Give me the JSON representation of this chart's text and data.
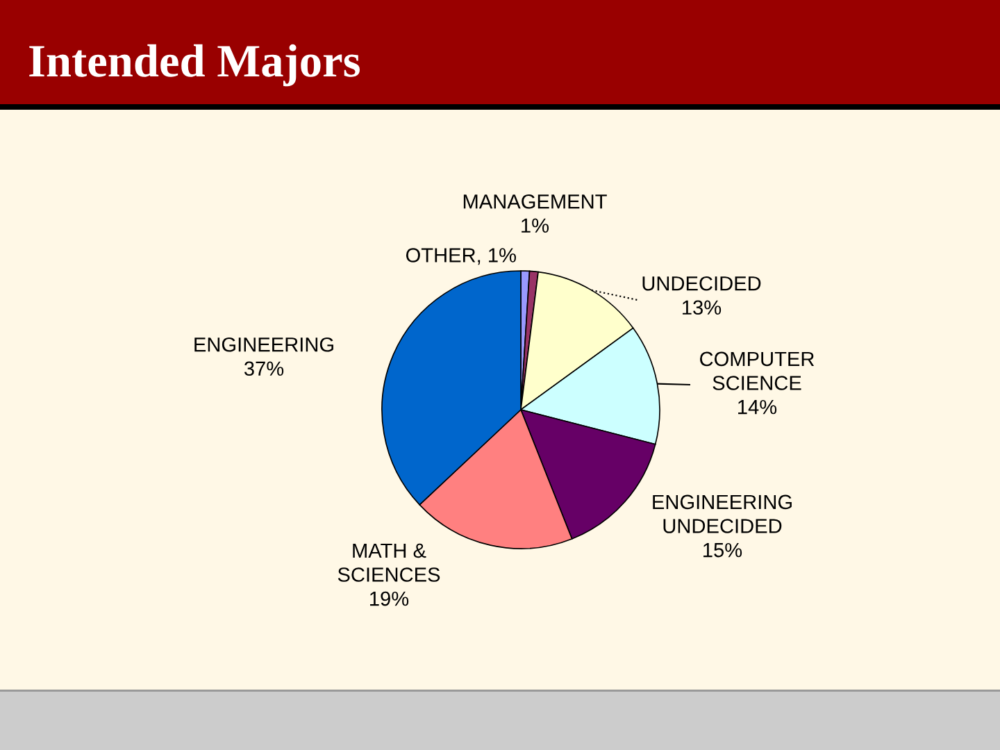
{
  "chart_data": {
    "type": "pie",
    "title": "Intended Majors",
    "categories": [
      "OTHER",
      "MANAGEMENT",
      "UNDECIDED",
      "COMPUTER SCIENCE",
      "ENGINEERING UNDECIDED",
      "MATH & SCIENCES",
      "ENGINEERING"
    ],
    "values": [
      1,
      1,
      13,
      14,
      15,
      19,
      37
    ],
    "colors": [
      "#9999ff",
      "#993366",
      "#ffffcc",
      "#ccffff",
      "#660066",
      "#ff8080",
      "#0066cc"
    ],
    "value_labels": [
      "1%",
      "1%",
      "13%",
      "14%",
      "15%",
      "19%",
      "37%"
    ]
  }
}
